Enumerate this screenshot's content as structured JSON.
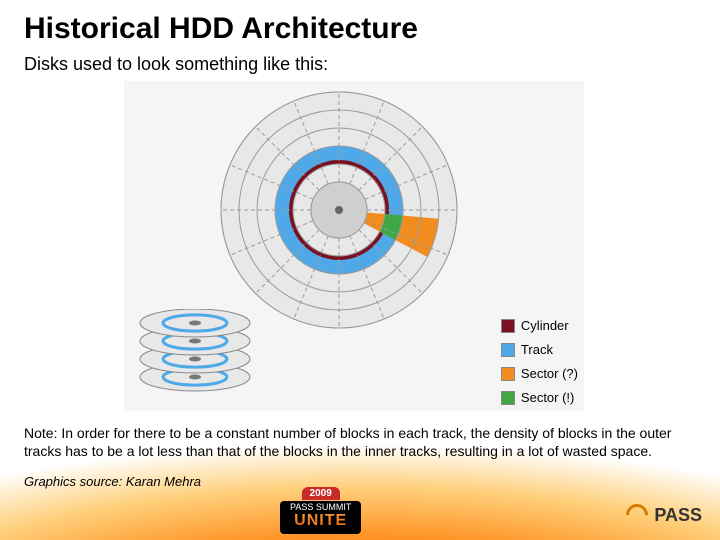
{
  "title": "Historical HDD Architecture",
  "subtitle": "Disks used to look something like this:",
  "note": "Note:  In order for there to be a constant number of blocks in each track, the density of blocks in the outer tracks has to be a lot less than that of the blocks in the inner tracks, resulting in a lot of wasted space.",
  "source": "Graphics source:  Karan Mehra",
  "disk": {
    "type": "radial-diagram",
    "radii": [
      28,
      46,
      64,
      82,
      100,
      118
    ],
    "sector_dividers": 16,
    "colors": {
      "background": "#e8e8e8",
      "ring_stroke": "#9a9a9a",
      "divider_stroke": "#9a9a9a",
      "track_fill": "#4fa8e8",
      "cylinder_fill": "#7a1020",
      "sector_wedge_fill": "#f28c1e",
      "sector_block_fill": "#3fa844",
      "hub_fill": "#cfcfcf"
    },
    "track_ring_index": 2,
    "sector_wedge": {
      "start_deg": 5,
      "end_deg": 28
    },
    "sector_block": {
      "ring_index": 2,
      "start_deg": 5,
      "end_deg": 28
    }
  },
  "platters": {
    "count": 4,
    "ellipse_rx": 55,
    "ellipse_ry": 14,
    "gap": 18,
    "fill": "#e8e8e8",
    "stroke": "#888888",
    "track_stroke": "#4fa8e8",
    "spindle_color": "#777777"
  },
  "legend": {
    "items": [
      {
        "label": "Cylinder",
        "color": "#7a1020"
      },
      {
        "label": "Track",
        "color": "#4fa8e8"
      },
      {
        "label": "Sector (?)",
        "color": "#f28c1e"
      },
      {
        "label": "Sector (!)",
        "color": "#3fa844"
      }
    ]
  },
  "footer": {
    "summit_year": "2009",
    "summit_line": "PASS SUMMIT",
    "summit_word": "UNITE",
    "brand": "PASS"
  },
  "gradient": {
    "c1": "#ffffff",
    "c2": "#ffcf7a",
    "c3": "#ff8c1a",
    "c4": "#d95b00"
  }
}
